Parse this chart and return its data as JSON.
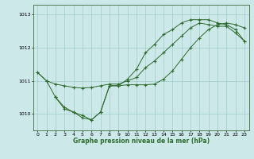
{
  "xlabel": "Graphe pression niveau de la mer (hPa)",
  "bg_color": "#cce8e8",
  "grid_color": "#9ecece",
  "line_color": "#2d6b2d",
  "xlim_min": -0.5,
  "xlim_max": 23.5,
  "ylim_min": 1009.5,
  "ylim_max": 1013.3,
  "yticks": [
    1010,
    1011,
    1012,
    1013
  ],
  "xticks": [
    0,
    1,
    2,
    3,
    4,
    5,
    6,
    7,
    8,
    9,
    10,
    11,
    12,
    13,
    14,
    15,
    16,
    17,
    18,
    19,
    20,
    21,
    22,
    23
  ],
  "line1_x": [
    0,
    1,
    2,
    3,
    4,
    5,
    6,
    7,
    8,
    9,
    10,
    11,
    12,
    13,
    14,
    15,
    16,
    17,
    18,
    19,
    20,
    21,
    22,
    23
  ],
  "line1_y": [
    1011.25,
    1011.0,
    1010.9,
    1010.85,
    1010.8,
    1010.78,
    1010.8,
    1010.85,
    1010.9,
    1010.9,
    1011.0,
    1011.1,
    1011.4,
    1011.6,
    1011.85,
    1012.1,
    1012.35,
    1012.6,
    1012.75,
    1012.7,
    1012.65,
    1012.65,
    1012.45,
    1012.2
  ],
  "line2_x": [
    0,
    1,
    2,
    3,
    4,
    5,
    6,
    7,
    8,
    9,
    10,
    11,
    12,
    13,
    14,
    15,
    16,
    17,
    18,
    19,
    20,
    21,
    22,
    23
  ],
  "line2_y": [
    1011.25,
    1011.0,
    1010.5,
    1010.2,
    1010.05,
    1009.88,
    1009.82,
    1010.05,
    1010.85,
    1010.85,
    1010.88,
    1010.88,
    1010.88,
    1010.9,
    1011.05,
    1011.3,
    1011.65,
    1012.0,
    1012.3,
    1012.55,
    1012.7,
    1012.75,
    1012.7,
    1012.6
  ],
  "line3_x": [
    2,
    3,
    4,
    5,
    6,
    7,
    8,
    9,
    10,
    11,
    12,
    13,
    14,
    15,
    16,
    17,
    18,
    19,
    20,
    21,
    22,
    23
  ],
  "line3_y": [
    1010.5,
    1010.15,
    1010.05,
    1009.95,
    1009.82,
    1010.05,
    1010.85,
    1010.85,
    1011.05,
    1011.35,
    1011.85,
    1012.1,
    1012.4,
    1012.55,
    1012.75,
    1012.85,
    1012.85,
    1012.85,
    1012.75,
    1012.7,
    1012.55,
    1012.2
  ]
}
